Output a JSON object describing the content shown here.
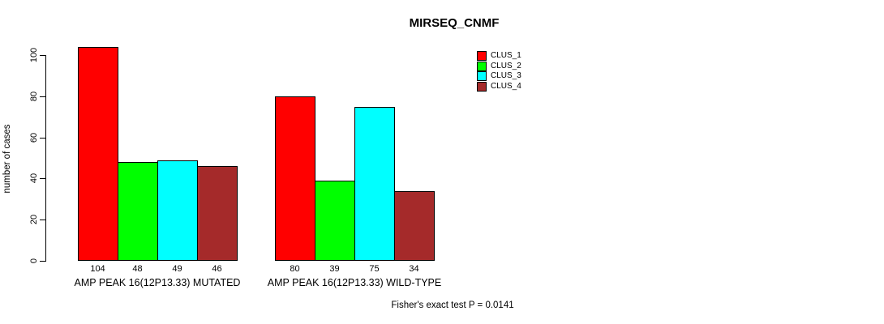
{
  "title": "MIRSEQ_CNMF",
  "y_axis": {
    "label": "number of cases"
  },
  "footer": "Fisher's exact test P = 0.0141",
  "chart_data": {
    "type": "bar",
    "title": "MIRSEQ_CNMF",
    "xlabel": "",
    "ylabel": "number of cases",
    "ylim": [
      0,
      100
    ],
    "yticks": [
      0,
      20,
      40,
      60,
      80,
      100
    ],
    "grid": false,
    "legend_position": "top-right",
    "categories": [
      "AMP PEAK 16(12P13.33) MUTATED",
      "AMP PEAK 16(12P13.33) WILD-TYPE"
    ],
    "series": [
      {
        "name": "CLUS_1",
        "color": "#ff0000",
        "values": [
          104,
          80
        ]
      },
      {
        "name": "CLUS_2",
        "color": "#00ff00",
        "values": [
          48,
          39
        ]
      },
      {
        "name": "CLUS_3",
        "color": "#00ffff",
        "values": [
          49,
          75
        ]
      },
      {
        "name": "CLUS_4",
        "color": "#a52a2a",
        "values": [
          46,
          34
        ]
      }
    ],
    "bar_labels_shown": true,
    "annotation": "Fisher's exact test P = 0.0141"
  }
}
